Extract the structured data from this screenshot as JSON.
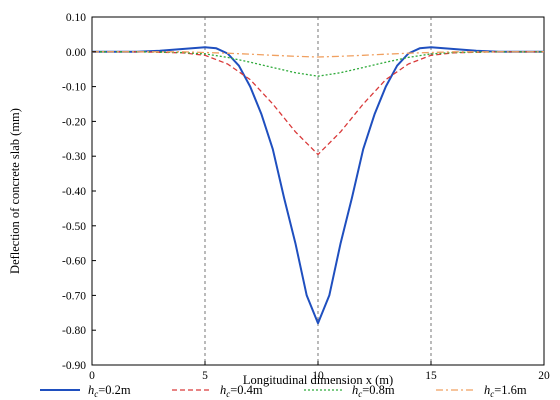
{
  "chart_data": {
    "type": "line",
    "xlabel": "Longitudinal dimension x (m)",
    "ylabel": "Deflection of concrete slab (mm)",
    "xlim": [
      0,
      20
    ],
    "ylim": [
      -0.9,
      0.1
    ],
    "x_ticks": [
      "0",
      "5",
      "10",
      "15",
      "20"
    ],
    "y_ticks": [
      "0.10",
      "0.00",
      "-0.10",
      "-0.20",
      "-0.30",
      "-0.40",
      "-0.50",
      "-0.60",
      "-0.70",
      "-0.80",
      "-0.90"
    ],
    "grid": "vertical dashed at x = 5, 10, 15",
    "legend_position": "bottom",
    "series": [
      {
        "name_prefix": "h",
        "name_sub": "c",
        "name_suffix": "=0.2m",
        "color": "#1f4fbf",
        "style": "solid",
        "x": [
          0,
          1,
          2,
          3,
          4,
          5,
          5.5,
          6,
          6.5,
          7,
          7.5,
          8,
          8.5,
          9,
          9.5,
          10,
          10.5,
          11,
          11.5,
          12,
          12.5,
          13,
          13.5,
          14,
          14.5,
          15,
          16,
          17,
          18,
          19,
          20
        ],
        "y": [
          0,
          0,
          0,
          0.003,
          0.008,
          0.013,
          0.01,
          -0.005,
          -0.04,
          -0.1,
          -0.18,
          -0.28,
          -0.42,
          -0.55,
          -0.7,
          -0.78,
          -0.7,
          -0.55,
          -0.42,
          -0.28,
          -0.18,
          -0.1,
          -0.04,
          -0.005,
          0.01,
          0.013,
          0.008,
          0.003,
          0,
          0,
          0
        ]
      },
      {
        "name_prefix": "h",
        "name_sub": "c",
        "name_suffix": "=0.4m",
        "color": "#d93a3a",
        "style": "dashed",
        "x": [
          0,
          2,
          4,
          5,
          6,
          7,
          8,
          9,
          10,
          11,
          12,
          13,
          14,
          15,
          16,
          18,
          20
        ],
        "y": [
          0,
          0,
          -0.003,
          -0.01,
          -0.035,
          -0.08,
          -0.15,
          -0.23,
          -0.295,
          -0.23,
          -0.15,
          -0.08,
          -0.035,
          -0.01,
          -0.003,
          0,
          0
        ]
      },
      {
        "name_prefix": "h",
        "name_sub": "c",
        "name_suffix": "=0.8m",
        "color": "#2eaa3a",
        "style": "dotted",
        "x": [
          0,
          2,
          4,
          5,
          6,
          7,
          8,
          9,
          10,
          11,
          12,
          13,
          14,
          15,
          16,
          18,
          20
        ],
        "y": [
          0,
          0,
          -0.002,
          -0.006,
          -0.016,
          -0.03,
          -0.045,
          -0.06,
          -0.07,
          -0.06,
          -0.045,
          -0.03,
          -0.016,
          -0.006,
          -0.002,
          0,
          0
        ]
      },
      {
        "name_prefix": "h",
        "name_sub": "c",
        "name_suffix": "=1.6m",
        "color": "#f0a060",
        "style": "dashdot",
        "x": [
          0,
          2,
          4,
          5,
          6,
          7,
          8,
          9,
          10,
          11,
          12,
          13,
          14,
          15,
          16,
          18,
          20
        ],
        "y": [
          0,
          0,
          0,
          -0.002,
          -0.004,
          -0.007,
          -0.01,
          -0.013,
          -0.015,
          -0.013,
          -0.01,
          -0.007,
          -0.004,
          -0.002,
          0,
          0,
          0
        ]
      }
    ]
  }
}
